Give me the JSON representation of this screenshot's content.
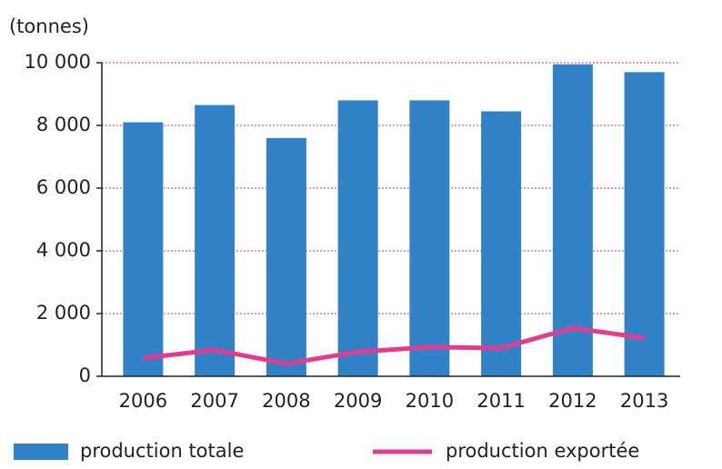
{
  "chart_data": {
    "type": "bar",
    "y_label": "(tonnes)",
    "categories": [
      "2006",
      "2007",
      "2008",
      "2009",
      "2010",
      "2011",
      "2012",
      "2013"
    ],
    "series": [
      {
        "name": "production totale",
        "type": "bar",
        "color": "#3182c6",
        "values": [
          8100,
          8650,
          7600,
          8800,
          8800,
          8450,
          9950,
          9700
        ]
      },
      {
        "name": "production exportée",
        "type": "line",
        "color": "#e23c8f",
        "values": [
          580,
          840,
          400,
          780,
          930,
          900,
          1540,
          1220
        ]
      }
    ],
    "ylim": [
      0,
      10000
    ],
    "yticks": [
      0,
      {
        "value": 2000,
        "label": "2 000"
      },
      {
        "value": 4000,
        "label": "4 000"
      },
      {
        "value": 6000,
        "label": "6 000"
      },
      {
        "value": 8000,
        "label": "8 000"
      },
      {
        "value": 10000,
        "label": "10 000"
      }
    ],
    "grid": true,
    "grid_color": "#d6338a"
  }
}
